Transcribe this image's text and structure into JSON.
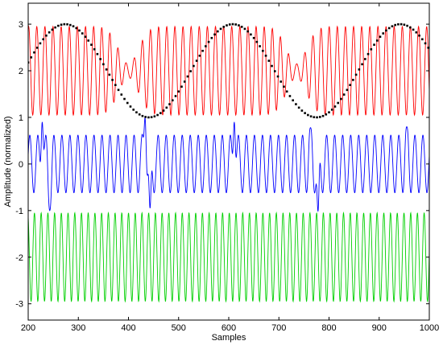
{
  "chart_data": {
    "type": "line",
    "title": "",
    "xlabel": "Samples",
    "ylabel": "Amplitude (normalized)",
    "xlim": [
      200,
      1000
    ],
    "ylim": [
      -3.35,
      3.45
    ],
    "x_ticks": [
      200,
      300,
      400,
      500,
      600,
      700,
      800,
      900,
      1000
    ],
    "y_ticks": [
      -3,
      -2,
      -1,
      0,
      1,
      2,
      3
    ],
    "grid": false,
    "legend": "none",
    "series": [
      {
        "color": "#ff0000",
        "style": "solid",
        "kind": "modulated sinusoid",
        "center": 2.0,
        "amplitude_range": [
          0.15,
          0.95
        ],
        "period_samples": 16.2,
        "x_start": 200,
        "x_end": 1000,
        "phase_rad": 1.2,
        "weak_amplitude_near_x": [
          400,
          735
        ]
      },
      {
        "color": "#0000ff",
        "style": "solid",
        "kind": "sinusoid with spikes",
        "center": 0.0,
        "amplitude": 0.62,
        "period_samples": 16.0,
        "x_start": 200,
        "x_end": 1000,
        "phase_rad": 0.3,
        "spikes": [
          {
            "x": 228,
            "value": 0.9
          },
          {
            "x": 243,
            "value": -1.0
          },
          {
            "x": 433,
            "value": 1.0
          },
          {
            "x": 443,
            "value": -0.95
          },
          {
            "x": 611,
            "value": 0.9
          },
          {
            "x": 763,
            "value": 0.78
          },
          {
            "x": 778,
            "value": -1.02
          },
          {
            "x": 955,
            "value": 0.8
          }
        ]
      },
      {
        "color": "#00d000",
        "style": "solid",
        "kind": "sinusoid",
        "center": -2.0,
        "amplitude": 0.95,
        "period_samples": 13.4,
        "x_start": 200,
        "x_end": 1000,
        "phase_rad": 2.0
      },
      {
        "color": "#000000",
        "style": "dotted",
        "kind": "slow sinusoid",
        "center": 2.0,
        "amplitude": 1.0,
        "period_samples": 334,
        "peak_at_x": 274,
        "x_start": 200,
        "x_end": 1000,
        "sample_step": 6
      }
    ]
  }
}
